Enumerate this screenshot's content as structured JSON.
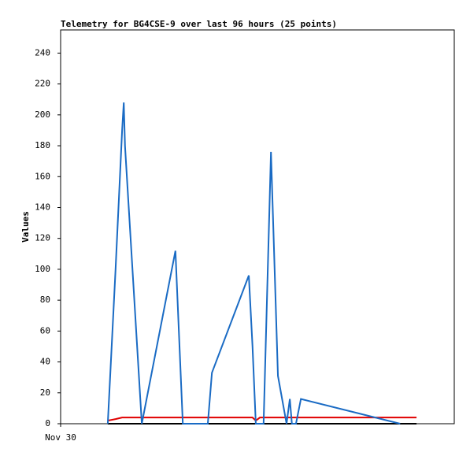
{
  "chart_data": {
    "type": "line",
    "title": "Telemetry for BG4CSE-9 over last 96 hours (25 points)",
    "y_label": "Values",
    "x": [
      11.5,
      13.4,
      15.0,
      15.4,
      15.7,
      19.8,
      28.0,
      29.8,
      35.9,
      36.9,
      45.9,
      46.8,
      47.6,
      48.6,
      49.5,
      51.3,
      53.0,
      55.1,
      55.9,
      56.4,
      57.4,
      58.6,
      82.8,
      85.1,
      86.8
    ],
    "xlim": [
      0,
      96
    ],
    "xticks": [
      {
        "value": 0,
        "label": "Nov 30"
      }
    ],
    "ylim": [
      0,
      255
    ],
    "yticks": [
      0,
      20,
      40,
      60,
      80,
      100,
      120,
      140,
      160,
      180,
      200,
      220,
      240
    ],
    "series": [
      {
        "color": "#000000",
        "values": [
          0,
          0,
          0,
          0,
          0,
          0,
          0,
          0,
          0,
          0,
          0,
          0,
          0,
          0,
          0,
          0,
          0,
          0,
          0,
          0,
          0,
          0,
          0,
          0,
          0
        ]
      },
      {
        "color": "#e00000",
        "values": [
          2,
          3,
          4,
          4,
          4,
          4,
          4,
          4,
          4,
          4,
          4,
          4,
          2,
          4,
          4,
          4,
          4,
          4,
          4,
          4,
          4,
          4,
          4,
          4,
          4
        ]
      },
      {
        "color": "#1a6bc4",
        "values": [
          0,
          100,
          190,
          208,
          180,
          0,
          112,
          0,
          0,
          33,
          96,
          50,
          0,
          0,
          0,
          176,
          31,
          0,
          16,
          0,
          0,
          16,
          0,
          null,
          null
        ]
      }
    ]
  }
}
